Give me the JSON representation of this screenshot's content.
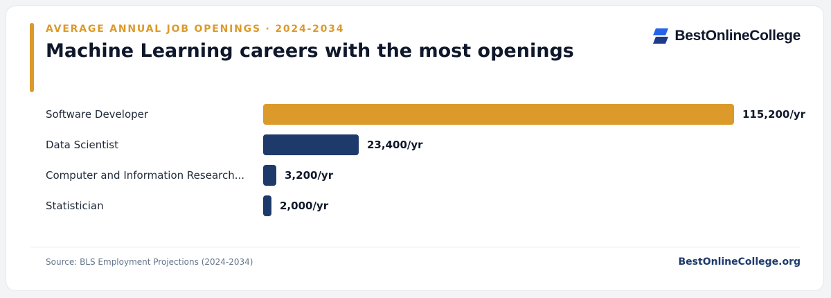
{
  "header": {
    "eyebrow": "AVERAGE ANNUAL JOB OPENINGS · 2024-2034",
    "title": "Machine Learning careers with the most openings"
  },
  "brand": {
    "name": "BestOnlineCollege",
    "icon": "brand-logo-icon"
  },
  "colors": {
    "highlight": "#dc9a2a",
    "default": "#1e3a6b"
  },
  "chart_data": {
    "type": "bar",
    "orientation": "horizontal",
    "categories": [
      "Software Developer",
      "Data Scientist",
      "Computer and Information Research...",
      "Statistician"
    ],
    "values": [
      115200,
      23400,
      3200,
      2000
    ],
    "value_labels": [
      "115,200/yr",
      "23,400/yr",
      "3,200/yr",
      "2,000/yr"
    ],
    "highlight_index": 0,
    "title": "Machine Learning careers with the most openings",
    "xlabel": "",
    "ylabel": "",
    "grid": false,
    "legend": "none"
  },
  "footer": {
    "source": "Source: BLS Employment Projections (2024-2034)",
    "site": "BestOnlineCollege.org"
  }
}
